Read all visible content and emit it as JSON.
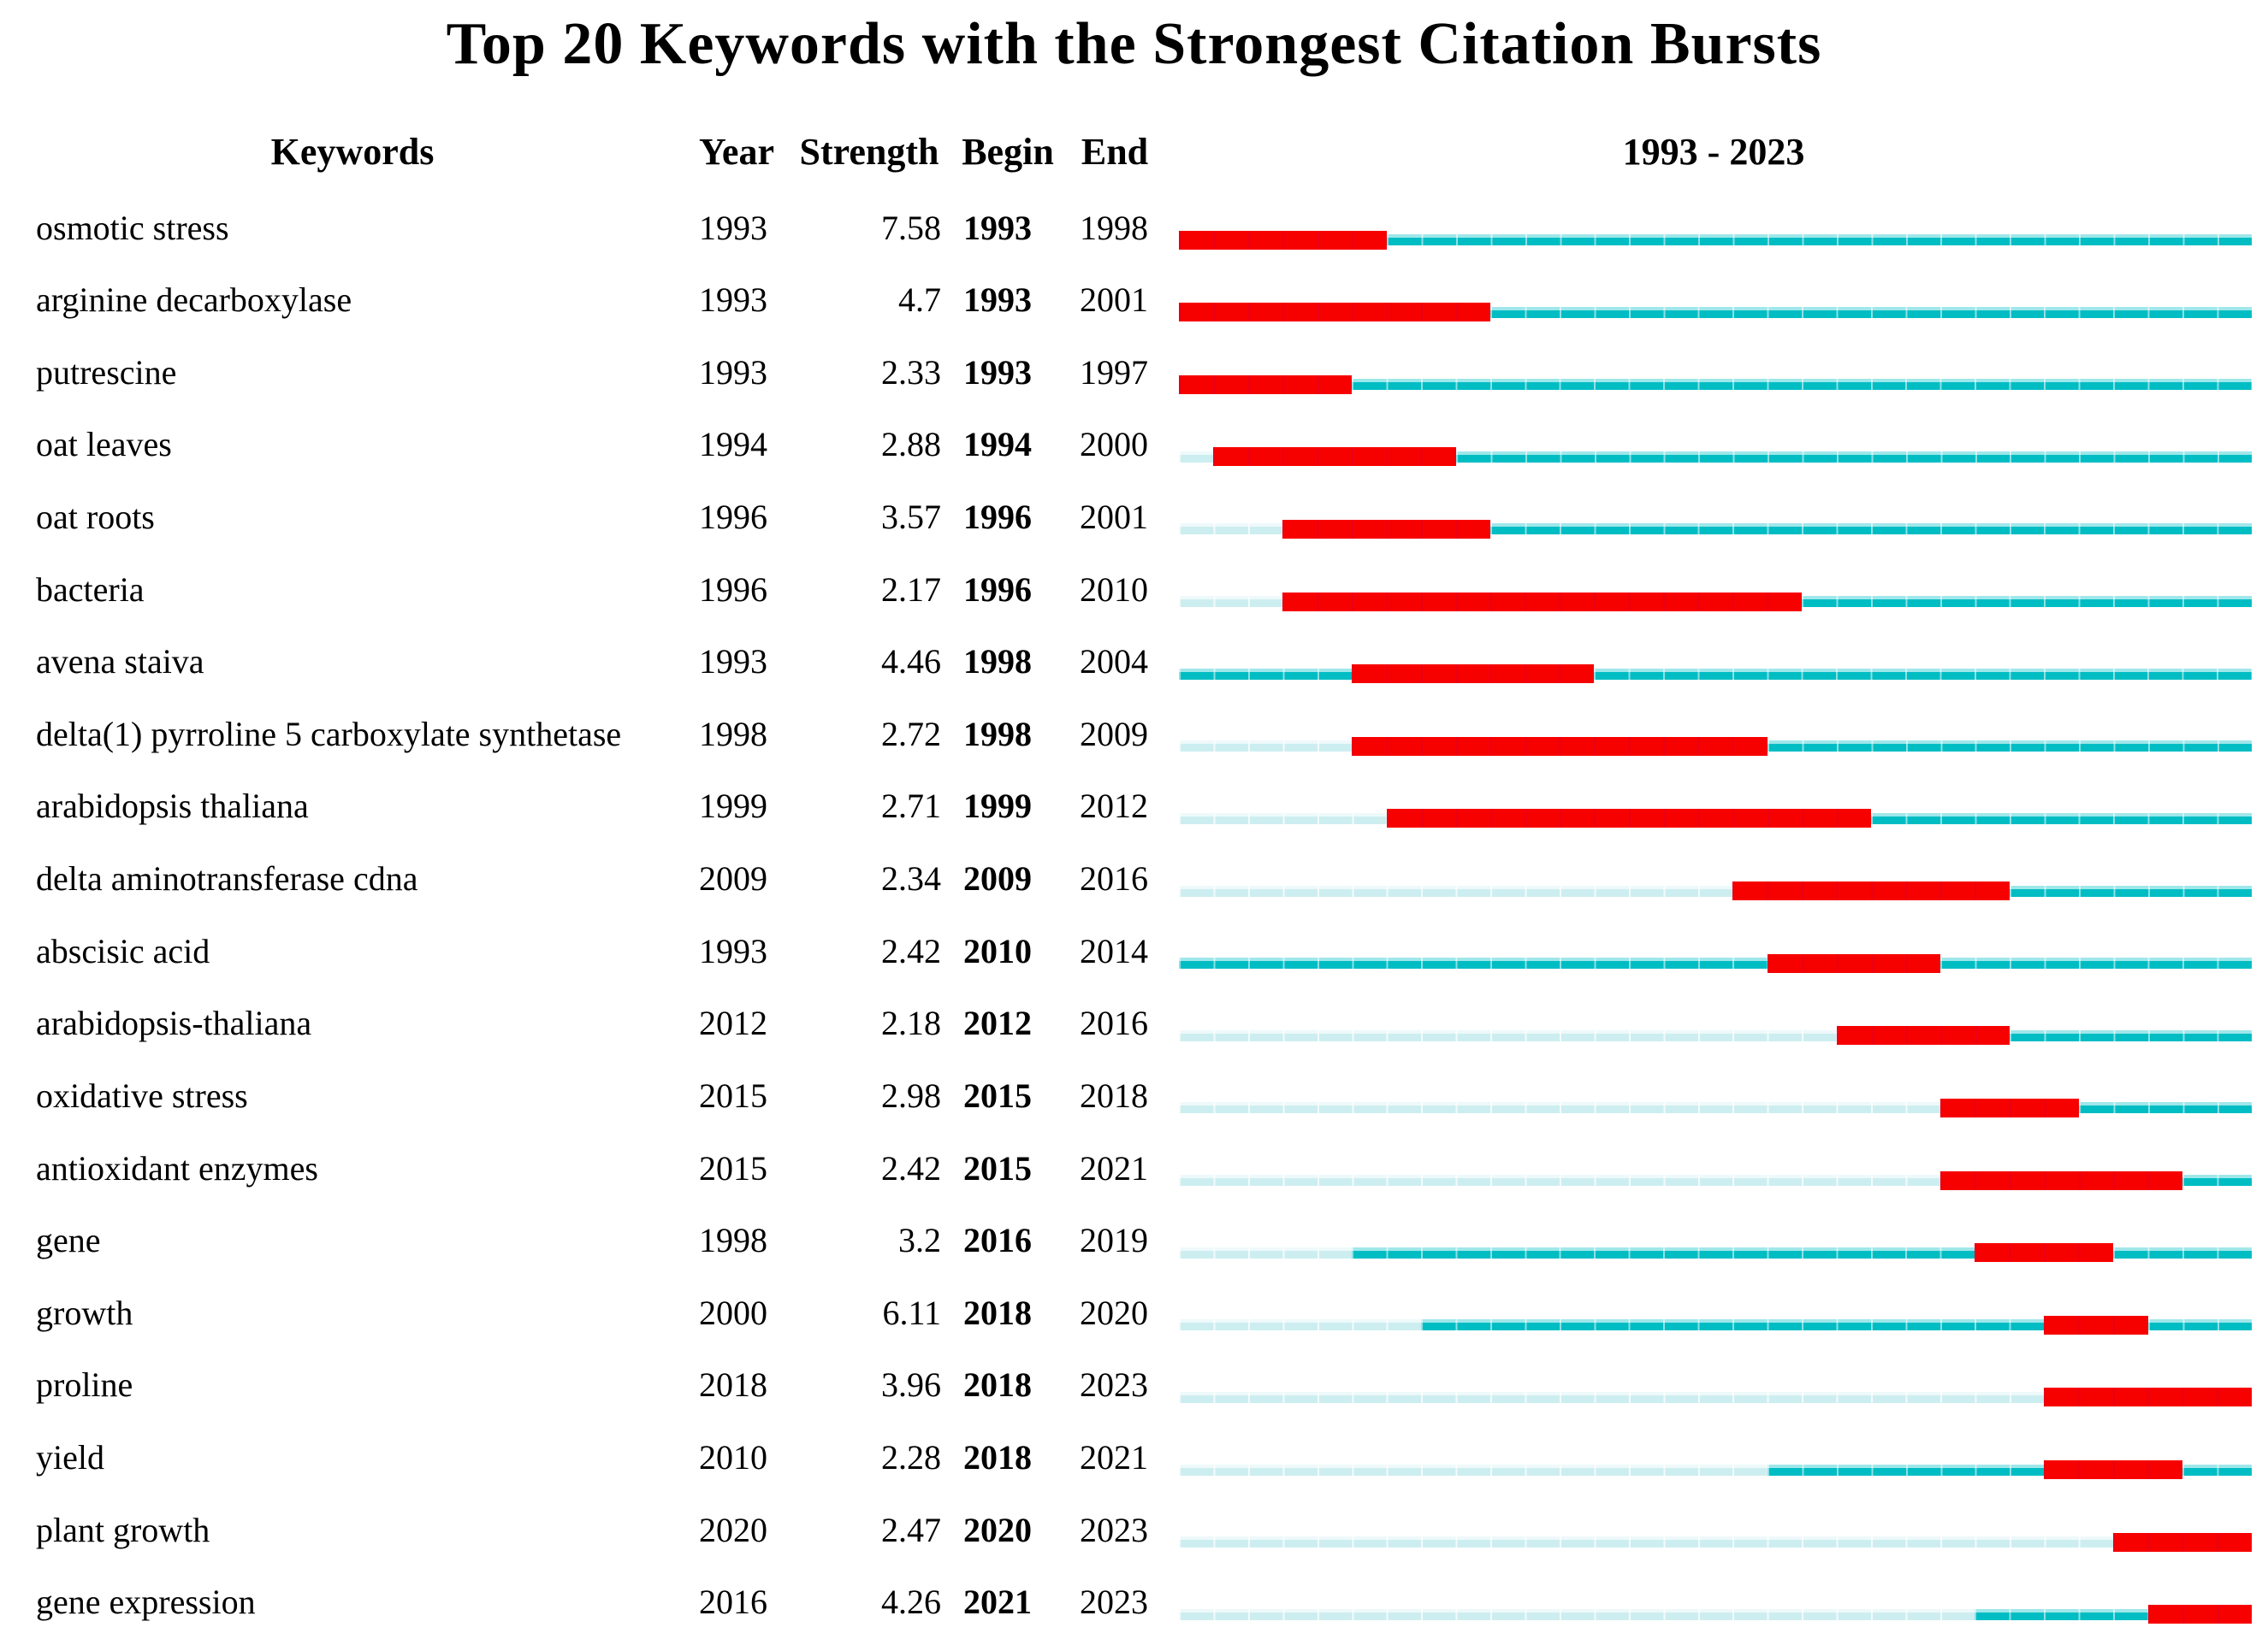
{
  "title": "Top 20 Keywords with the Strongest Citation Bursts",
  "columns": {
    "keyword": "Keywords",
    "year": "Year",
    "strength": "Strength",
    "begin": "Begin",
    "end": "End",
    "range": "1993 - 2023"
  },
  "colors": {
    "burst": "#f70000",
    "active": "#00bdc4",
    "active_highlight": "#9fe7ea",
    "inactive": "#cdeef0",
    "inactive_highlight": "#eef9fa"
  },
  "chart_data": {
    "type": "table",
    "timeline": {
      "start": 1993,
      "end": 2023
    },
    "rows": [
      {
        "keyword": "osmotic stress",
        "year": 1993,
        "strength": "7.58",
        "begin": 1993,
        "end": 1998
      },
      {
        "keyword": "arginine decarboxylase",
        "year": 1993,
        "strength": "4.7",
        "begin": 1993,
        "end": 2001
      },
      {
        "keyword": "putrescine",
        "year": 1993,
        "strength": "2.33",
        "begin": 1993,
        "end": 1997
      },
      {
        "keyword": "oat leaves",
        "year": 1994,
        "strength": "2.88",
        "begin": 1994,
        "end": 2000
      },
      {
        "keyword": "oat roots",
        "year": 1996,
        "strength": "3.57",
        "begin": 1996,
        "end": 2001
      },
      {
        "keyword": "bacteria",
        "year": 1996,
        "strength": "2.17",
        "begin": 1996,
        "end": 2010
      },
      {
        "keyword": "avena staiva",
        "year": 1993,
        "strength": "4.46",
        "begin": 1998,
        "end": 2004
      },
      {
        "keyword": "delta(1) pyrroline 5 carboxylate synthetase",
        "year": 1998,
        "strength": "2.72",
        "begin": 1998,
        "end": 2009
      },
      {
        "keyword": "arabidopsis thaliana",
        "year": 1999,
        "strength": "2.71",
        "begin": 1999,
        "end": 2012
      },
      {
        "keyword": "delta aminotransferase cdna",
        "year": 2009,
        "strength": "2.34",
        "begin": 2009,
        "end": 2016
      },
      {
        "keyword": "abscisic acid",
        "year": 1993,
        "strength": "2.42",
        "begin": 2010,
        "end": 2014
      },
      {
        "keyword": "arabidopsis-thaliana",
        "year": 2012,
        "strength": "2.18",
        "begin": 2012,
        "end": 2016
      },
      {
        "keyword": "oxidative stress",
        "year": 2015,
        "strength": "2.98",
        "begin": 2015,
        "end": 2018
      },
      {
        "keyword": "antioxidant enzymes",
        "year": 2015,
        "strength": "2.42",
        "begin": 2015,
        "end": 2021
      },
      {
        "keyword": "gene",
        "year": 1998,
        "strength": "3.2",
        "begin": 2016,
        "end": 2019
      },
      {
        "keyword": "growth",
        "year": 2000,
        "strength": "6.11",
        "begin": 2018,
        "end": 2020
      },
      {
        "keyword": "proline",
        "year": 2018,
        "strength": "3.96",
        "begin": 2018,
        "end": 2023
      },
      {
        "keyword": "yield",
        "year": 2010,
        "strength": "2.28",
        "begin": 2018,
        "end": 2021
      },
      {
        "keyword": "plant growth",
        "year": 2020,
        "strength": "2.47",
        "begin": 2020,
        "end": 2023
      },
      {
        "keyword": "gene expression",
        "year": 2016,
        "strength": "4.26",
        "begin": 2021,
        "end": 2023
      }
    ]
  }
}
